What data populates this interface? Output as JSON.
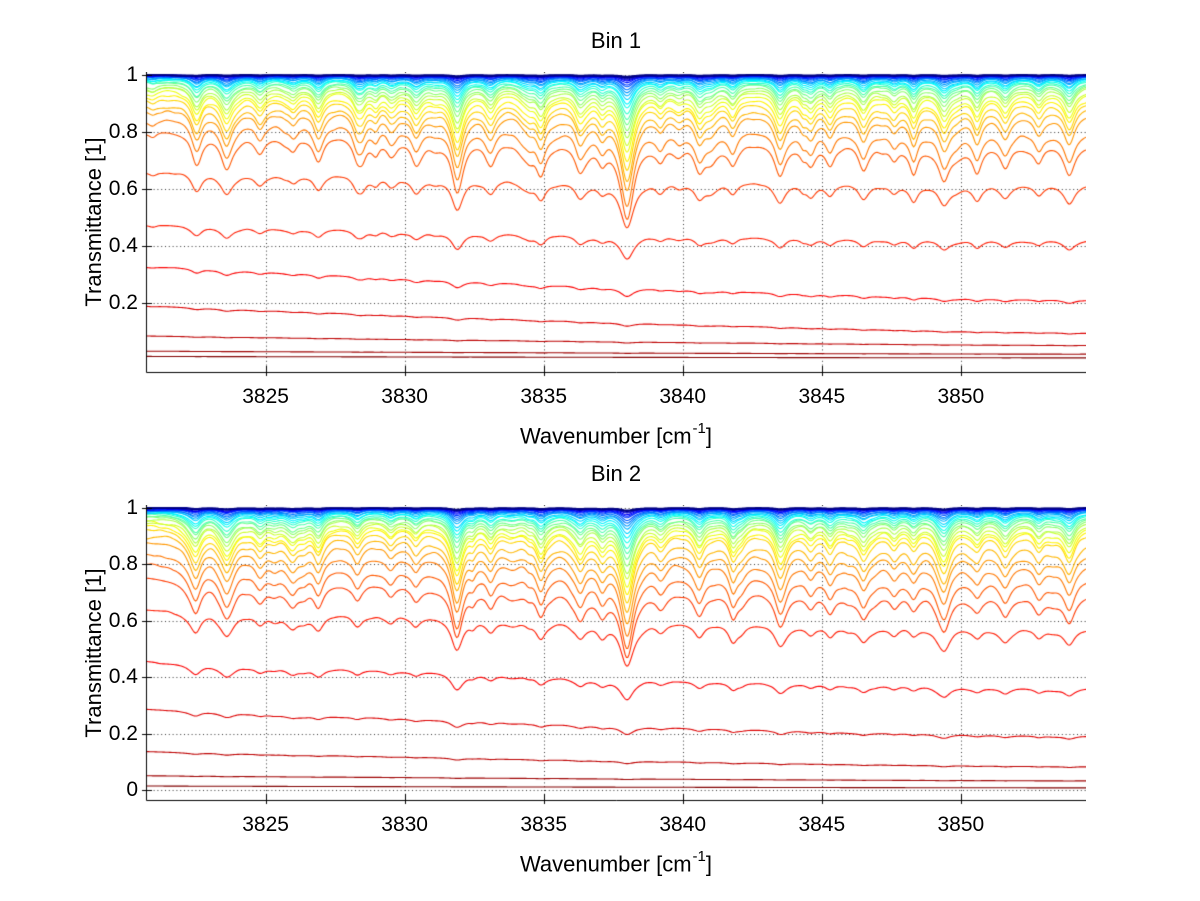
{
  "figure": {
    "background": "#ffffff"
  },
  "style": {
    "axis_color": "#000000",
    "grid_color": "#000000",
    "grid_style": "dotted",
    "text_color": "#000000",
    "colormap": "jet"
  },
  "absorption_lines": {
    "comment": "shared spectral dips [position_cm-1, depth_fraction, halfwidth_cm-1]",
    "lines": [
      [
        3822.5,
        0.1,
        0.22
      ],
      [
        3823.6,
        0.13,
        0.26
      ],
      [
        3824.8,
        0.07,
        0.22
      ],
      [
        3826.0,
        0.05,
        0.2
      ],
      [
        3826.9,
        0.1,
        0.22
      ],
      [
        3828.3,
        0.07,
        0.2
      ],
      [
        3829.5,
        0.05,
        0.2
      ],
      [
        3830.4,
        0.06,
        0.2
      ],
      [
        3831.9,
        0.2,
        0.26
      ],
      [
        3833.1,
        0.08,
        0.2
      ],
      [
        3834.9,
        0.12,
        0.22
      ],
      [
        3836.3,
        0.09,
        0.22
      ],
      [
        3837.1,
        0.07,
        0.2
      ],
      [
        3838.0,
        0.3,
        0.3
      ],
      [
        3839.2,
        0.06,
        0.2
      ],
      [
        3840.6,
        0.1,
        0.22
      ],
      [
        3841.8,
        0.08,
        0.2
      ],
      [
        3843.5,
        0.13,
        0.24
      ],
      [
        3844.6,
        0.06,
        0.2
      ],
      [
        3845.3,
        0.08,
        0.2
      ],
      [
        3846.5,
        0.1,
        0.22
      ],
      [
        3847.6,
        0.06,
        0.2
      ],
      [
        3848.3,
        0.07,
        0.2
      ],
      [
        3849.4,
        0.12,
        0.24
      ],
      [
        3850.6,
        0.06,
        0.2
      ],
      [
        3851.6,
        0.09,
        0.22
      ],
      [
        3852.8,
        0.07,
        0.2
      ],
      [
        3853.9,
        0.12,
        0.24
      ]
    ],
    "texture": {
      "minor_line_count": 40,
      "strength_min": 0.006,
      "strength_max": 0.045,
      "width_min": 0.13,
      "width_max": 0.33
    }
  },
  "chart_data": [
    {
      "type": "line",
      "title": "Bin 1",
      "xlabel": {
        "pre": "Wavenumber [cm",
        "sup": "-1",
        "post": "]"
      },
      "ylabel": "Transmittance [1]",
      "xlim": [
        3820.7,
        3854.5
      ],
      "ylim": [
        -0.04,
        1.01
      ],
      "xtick_values": [
        3825,
        3830,
        3835,
        3840,
        3845,
        3850
      ],
      "xtick_labels": [
        "3825",
        "3830",
        "3835",
        "3840",
        "3845",
        "3850"
      ],
      "ytick_values": [
        1,
        0.8,
        0.6,
        0.4,
        0.2
      ],
      "ytick_labels": [
        "1",
        "0.8",
        "0.6",
        "0.4",
        "0.2"
      ],
      "grid": "dotted",
      "legend": "none",
      "noise_seed": 7,
      "series_format": [
        "left_level",
        "right_level",
        "dip_gain"
      ],
      "series": [
        [
          1.0,
          1.0,
          0.02
        ],
        [
          0.9995,
          0.9993,
          0.03
        ],
        [
          0.9991,
          0.9988,
          0.04
        ],
        [
          0.9987,
          0.9983,
          0.05
        ],
        [
          0.9982,
          0.9977,
          0.06
        ],
        [
          0.9976,
          0.997,
          0.08
        ],
        [
          0.9969,
          0.9962,
          0.1
        ],
        [
          0.9961,
          0.9952,
          0.12
        ],
        [
          0.9951,
          0.994,
          0.15
        ],
        [
          0.9939,
          0.9926,
          0.18
        ],
        [
          0.9925,
          0.991,
          0.21
        ],
        [
          0.9908,
          0.989,
          0.25
        ],
        [
          0.9888,
          0.9865,
          0.29
        ],
        [
          0.9863,
          0.9835,
          0.33
        ],
        [
          0.9833,
          0.98,
          0.38
        ],
        [
          0.9795,
          0.9755,
          0.43
        ],
        [
          0.975,
          0.97,
          0.48
        ],
        [
          0.9695,
          0.9635,
          0.54
        ],
        [
          0.963,
          0.956,
          0.6
        ],
        [
          0.955,
          0.9465,
          0.66
        ],
        [
          0.9455,
          0.935,
          0.72
        ],
        [
          0.934,
          0.9215,
          0.79
        ],
        [
          0.92,
          0.905,
          0.86
        ],
        [
          0.903,
          0.884,
          0.93
        ],
        [
          0.881,
          0.858,
          1.0
        ],
        [
          0.8455,
          0.8015,
          1.1
        ],
        [
          0.8005,
          0.7565,
          1.15
        ],
        [
          0.666,
          0.616,
          0.85
        ],
        [
          0.476,
          0.421,
          0.62
        ],
        [
          0.331,
          0.211,
          0.4
        ],
        [
          0.191,
          0.096,
          0.28
        ],
        [
          0.086,
          0.053,
          0.2
        ],
        [
          0.033,
          0.0225,
          0.15
        ],
        [
          0.0145,
          0.0095,
          0.1
        ]
      ]
    },
    {
      "type": "line",
      "title": "Bin 2",
      "xlabel": {
        "pre": "Wavenumber [cm",
        "sup": "-1",
        "post": "]"
      },
      "ylabel": "Transmittance [1]",
      "xlim": [
        3820.7,
        3854.5
      ],
      "ylim": [
        -0.035,
        1.01
      ],
      "xtick_values": [
        3825,
        3830,
        3835,
        3840,
        3845,
        3850
      ],
      "xtick_labels": [
        "3825",
        "3830",
        "3835",
        "3840",
        "3845",
        "3850"
      ],
      "ytick_values": [
        1,
        0.8,
        0.6,
        0.4,
        0.2,
        0
      ],
      "ytick_labels": [
        "1",
        "0.8",
        "0.6",
        "0.4",
        "0.2",
        "0"
      ],
      "grid": "dotted",
      "legend": "none",
      "noise_seed": 13,
      "series_format": [
        "left_level",
        "right_level",
        "dip_gain"
      ],
      "series": [
        [
          1.0,
          1.0,
          0.03
        ],
        [
          0.9995,
          0.9992,
          0.035
        ],
        [
          0.999,
          0.9986,
          0.045
        ],
        [
          0.9985,
          0.998,
          0.055
        ],
        [
          0.9979,
          0.9972,
          0.07
        ],
        [
          0.9972,
          0.9963,
          0.085
        ],
        [
          0.9963,
          0.9952,
          0.1
        ],
        [
          0.9952,
          0.9939,
          0.125
        ],
        [
          0.994,
          0.9924,
          0.15
        ],
        [
          0.9926,
          0.9907,
          0.18
        ],
        [
          0.991,
          0.9887,
          0.21
        ],
        [
          0.989,
          0.9863,
          0.25
        ],
        [
          0.9867,
          0.9835,
          0.29
        ],
        [
          0.984,
          0.9802,
          0.34
        ],
        [
          0.9808,
          0.9763,
          0.39
        ],
        [
          0.977,
          0.9718,
          0.44
        ],
        [
          0.9725,
          0.9665,
          0.5
        ],
        [
          0.9672,
          0.9603,
          0.56
        ],
        [
          0.961,
          0.953,
          0.62
        ],
        [
          0.9538,
          0.9445,
          0.68
        ],
        [
          0.9455,
          0.9348,
          0.75
        ],
        [
          0.936,
          0.9235,
          0.81
        ],
        [
          0.925,
          0.9105,
          0.88
        ],
        [
          0.9055,
          0.8715,
          0.92
        ],
        [
          0.878,
          0.8395,
          0.98
        ],
        [
          0.8465,
          0.8015,
          1.06
        ],
        [
          0.801,
          0.7495,
          1.12
        ],
        [
          0.7455,
          0.691,
          1.1
        ],
        [
          0.641,
          0.576,
          0.85
        ],
        [
          0.456,
          0.361,
          0.62
        ],
        [
          0.286,
          0.191,
          0.42
        ],
        [
          0.136,
          0.083,
          0.28
        ],
        [
          0.051,
          0.033,
          0.2
        ],
        [
          0.0145,
          0.008,
          0.1
        ]
      ]
    }
  ]
}
